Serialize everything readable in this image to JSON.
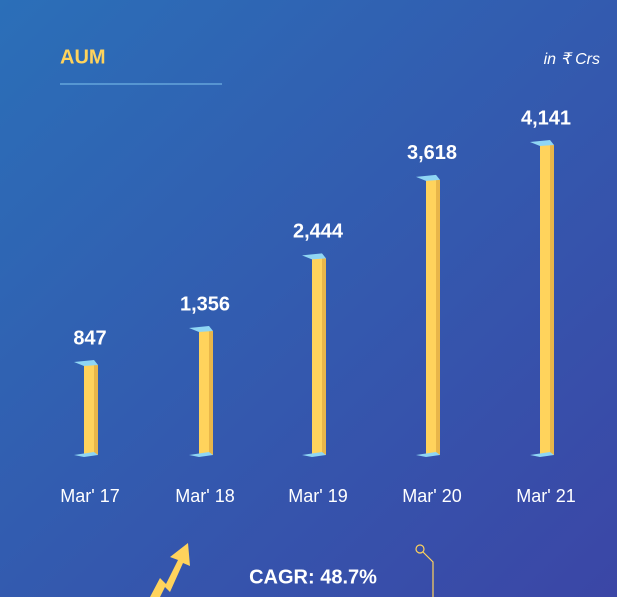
{
  "chart_data": {
    "type": "bar",
    "title": "AUM",
    "subtitle": "in ₹ Crs",
    "categories": [
      "Mar' 17",
      "Mar' 18",
      "Mar' 19",
      "Mar' 20",
      "Mar' 21"
    ],
    "values": [
      847,
      1356,
      2444,
      3618,
      4141
    ],
    "value_labels": [
      "847",
      "1,356",
      "2,444",
      "3,618",
      "4,141"
    ],
    "color": "#ffd35c",
    "ylim": [
      -500,
      4500
    ],
    "annotation": "CAGR: 48.7%"
  }
}
